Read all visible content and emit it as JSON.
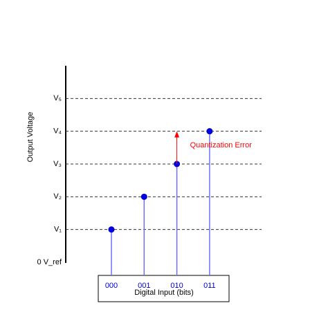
{
  "chart_data": {
    "type": "stem",
    "xlabel": "Digital Input (bits)",
    "ylabel": "Output Voltage",
    "categories": [
      "000",
      "001",
      "010",
      "011"
    ],
    "values": [
      1,
      2,
      3,
      4
    ],
    "color": "#0000dd",
    "stem_color": "#6f6fff",
    "category_color": "#0000cc",
    "ylim": [
      0,
      6
    ],
    "yticks": [
      {
        "value": 0,
        "label": "0 V_ref"
      },
      {
        "value": 1,
        "label": "V₁"
      },
      {
        "value": 2,
        "label": "V₂"
      },
      {
        "value": 3,
        "label": "V₃"
      },
      {
        "value": 4,
        "label": "V₄"
      },
      {
        "value": 5,
        "label": "V₅"
      }
    ],
    "grid": true,
    "annotation": {
      "text": "Quantization Error",
      "category": "010",
      "from": 3,
      "to": 4,
      "color": "#ff0000"
    }
  }
}
